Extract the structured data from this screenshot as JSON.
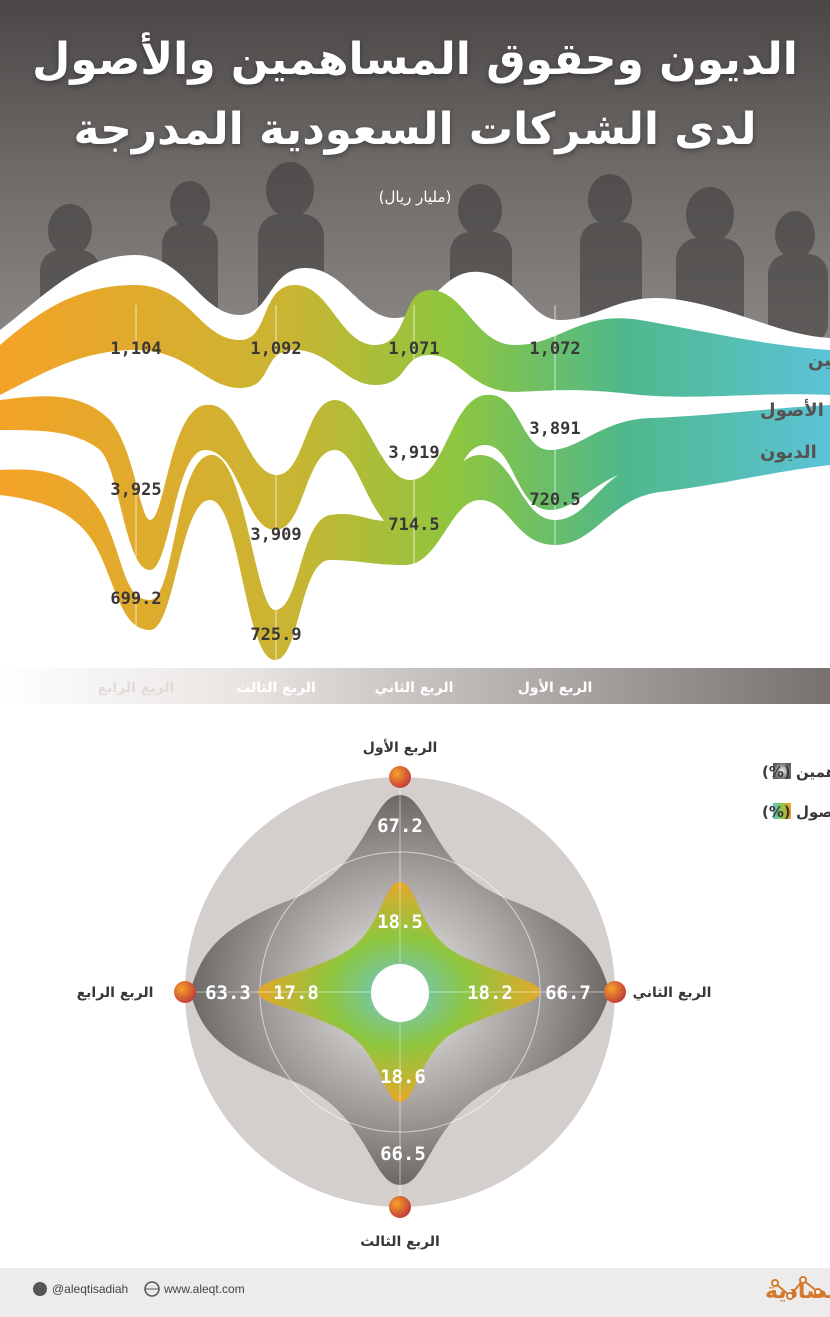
{
  "title_line1": "الديون وحقوق المساهمين والأصول",
  "title_line2": "لدى الشركات السعودية المدرجة",
  "unit": "(مليار ريال)",
  "quarters": [
    "الربع الأول",
    "الربع الثاني",
    "الربع الثالث",
    "الربع الرابع"
  ],
  "series_labels": {
    "equity": "حقوق المساهمين",
    "assets": "الأصول",
    "debt": "الديون"
  },
  "legend": {
    "debt_to_equity": "الديون/حقوق المساهمين (%)",
    "debt_to_assets": "الديون/الأصول (%)"
  },
  "footer": {
    "twitter": "@aleqtisadiah",
    "website": "www.aleqt.com",
    "brand": "الاقتصادية"
  },
  "colors": {
    "orange": "#f4a227",
    "teal": "#5bc3d6",
    "green": "#8dc63f",
    "dark_gray": "#5c5a58",
    "light_gray": "#d4cfcc"
  },
  "chart_data": [
    {
      "type": "area",
      "categories": [
        "الربع الأول",
        "الربع الثاني",
        "الربع الثالث",
        "الربع الرابع"
      ],
      "series": [
        {
          "name": "حقوق المساهمين",
          "values": [
            1072,
            1071,
            1092,
            1104
          ],
          "labels": [
            "1,072",
            "1,071",
            "1,092",
            "1,104"
          ]
        },
        {
          "name": "الأصول",
          "values": [
            3891,
            3919,
            3909,
            3925
          ],
          "labels": [
            "3,891",
            "3,919",
            "3,909",
            "3,925"
          ]
        },
        {
          "name": "الديون",
          "values": [
            720.5,
            714.5,
            725.9,
            699.2
          ],
          "labels": [
            "720.5",
            "714.5",
            "725.9",
            "699.2"
          ]
        }
      ]
    },
    {
      "type": "radar",
      "axes": [
        "الربع الأول",
        "الربع الثاني",
        "الربع الثالث",
        "الربع الرابع"
      ],
      "series": [
        {
          "name": "الديون/حقوق المساهمين (%)",
          "values": [
            67.2,
            66.7,
            66.5,
            63.3
          ],
          "labels": [
            "67.2",
            "66.7",
            "66.5",
            "63.3"
          ]
        },
        {
          "name": "الديون/الأصول (%)",
          "values": [
            18.5,
            18.2,
            18.6,
            17.8
          ],
          "labels": [
            "18.5",
            "18.2",
            "18.6",
            "17.8"
          ]
        }
      ]
    }
  ]
}
